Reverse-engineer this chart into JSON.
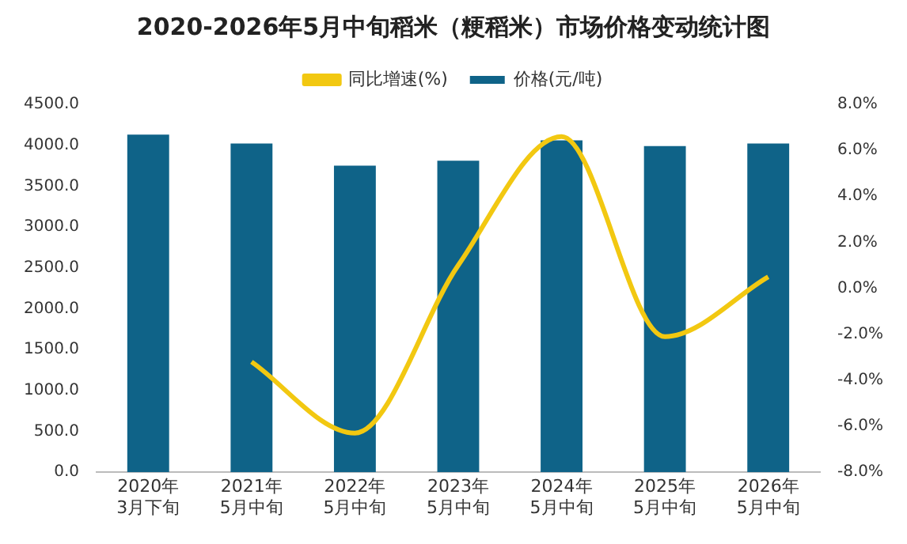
{
  "chart_data": {
    "type": "bar",
    "title": "2020-2026年5月中旬稻米（粳稻米）市场价格变动统计图",
    "categories": [
      "2020年\n3月下旬",
      "2021年\n5月中旬",
      "2022年\n5月中旬",
      "2023年\n5月中旬",
      "2024年\n5月中旬",
      "2025年\n5月中旬",
      "2026年\n5月中旬"
    ],
    "series": [
      {
        "name": "价格(元/吨)",
        "color": "#0f6388",
        "values": [
          4130,
          4020,
          3750,
          3810,
          4060,
          3990,
          4020
        ]
      },
      {
        "name": "同比增速(%)",
        "type": "line",
        "axis": "y2",
        "color": "#f2c811",
        "values": [
          null,
          -3.2,
          -6.3,
          1.0,
          6.6,
          -2.1,
          0.5
        ]
      }
    ],
    "ylim": [
      0,
      4500
    ],
    "yticks": [
      {
        "value": 0,
        "label": "0.0"
      },
      {
        "value": 500,
        "label": "500.0"
      },
      {
        "value": 1000,
        "label": "1000.0"
      },
      {
        "value": 1500,
        "label": "1500.0"
      },
      {
        "value": 2000,
        "label": "2000.0"
      },
      {
        "value": 2500,
        "label": "2500.0"
      },
      {
        "value": 3000,
        "label": "3000.0"
      },
      {
        "value": 3500,
        "label": "3500.0"
      },
      {
        "value": 4000,
        "label": "4000.0"
      },
      {
        "value": 4500,
        "label": "4500.0"
      }
    ],
    "y2lim": [
      -8,
      8
    ],
    "y2ticks": [
      {
        "value": -8,
        "label": "-8.0%"
      },
      {
        "value": -6,
        "label": "-6.0%"
      },
      {
        "value": -4,
        "label": "-4.0%"
      },
      {
        "value": -2,
        "label": "-2.0%"
      },
      {
        "value": 0,
        "label": "0.0%"
      },
      {
        "value": 2,
        "label": "2.0%"
      },
      {
        "value": 4,
        "label": "4.0%"
      },
      {
        "value": 6,
        "label": "6.0%"
      },
      {
        "value": 8,
        "label": "8.0%"
      }
    ],
    "grid": false,
    "legend": "top",
    "marker": "none"
  }
}
